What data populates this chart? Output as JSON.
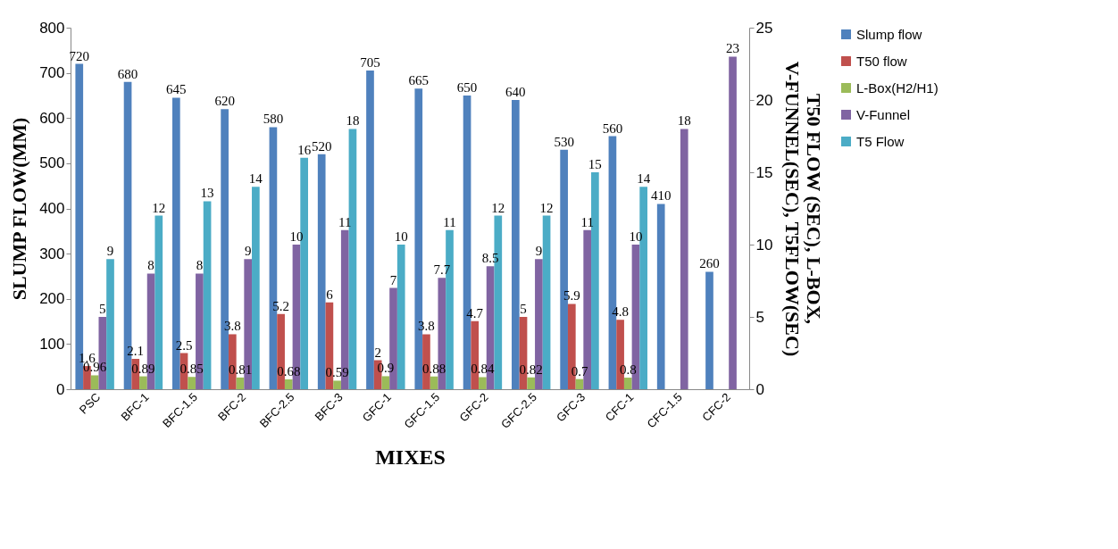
{
  "chart_data": {
    "type": "bar",
    "xlabel": "MIXES",
    "ylabel": "SLUMP FLOW(MM)",
    "y2label": "T50 FLOW (SEC), L-BOX, V-FUNNEL(SEC), T5FLOW(SEC)",
    "categories": [
      "PSC",
      "BFC-1",
      "BFC-1.5",
      "BFC-2",
      "BFC-2.5",
      "BFC-3",
      "GFC-1",
      "GFC-1.5",
      "GFC-2",
      "GFC-2.5",
      "GFC-3",
      "CFC-1",
      "CFC-1.5",
      "CFC-2"
    ],
    "series": [
      {
        "name": "Slump flow",
        "color": "#4f81bd",
        "values": [
          720,
          680,
          645,
          620,
          580,
          520,
          705,
          665,
          650,
          640,
          530,
          560,
          410,
          260
        ]
      },
      {
        "name": "T50 flow",
        "color": "#c0504d",
        "axis": "y2",
        "values": [
          1.6,
          2.1,
          2.5,
          3.8,
          5.2,
          6,
          2,
          3.8,
          4.7,
          5,
          5.9,
          4.8,
          null,
          null
        ]
      },
      {
        "name": "L-Box(H2/H1)",
        "color": "#9bbb59",
        "axis": "y2",
        "values": [
          0.96,
          0.89,
          0.85,
          0.81,
          0.68,
          0.59,
          0.9,
          0.88,
          0.84,
          0.82,
          0.7,
          0.8,
          null,
          null
        ]
      },
      {
        "name": "V-Funnel",
        "color": "#8064a2",
        "axis": "y2",
        "values": [
          5,
          8,
          8,
          9,
          10,
          11,
          7,
          7.7,
          8.5,
          9,
          11,
          10,
          18,
          23
        ]
      },
      {
        "name": "T5 Flow",
        "color": "#4bacc6",
        "axis": "y2",
        "values": [
          9,
          12,
          13,
          14,
          16,
          18,
          10,
          11,
          12,
          12,
          15,
          14,
          null,
          null
        ]
      }
    ],
    "ylim": [
      0,
      800
    ],
    "yticks": [
      0,
      100,
      200,
      300,
      400,
      500,
      600,
      700,
      800
    ],
    "y2lim": [
      0,
      25
    ],
    "y2ticks": [
      0,
      5,
      10,
      15,
      20,
      25
    ],
    "data_labels": true,
    "legend": "right",
    "grid": false
  }
}
